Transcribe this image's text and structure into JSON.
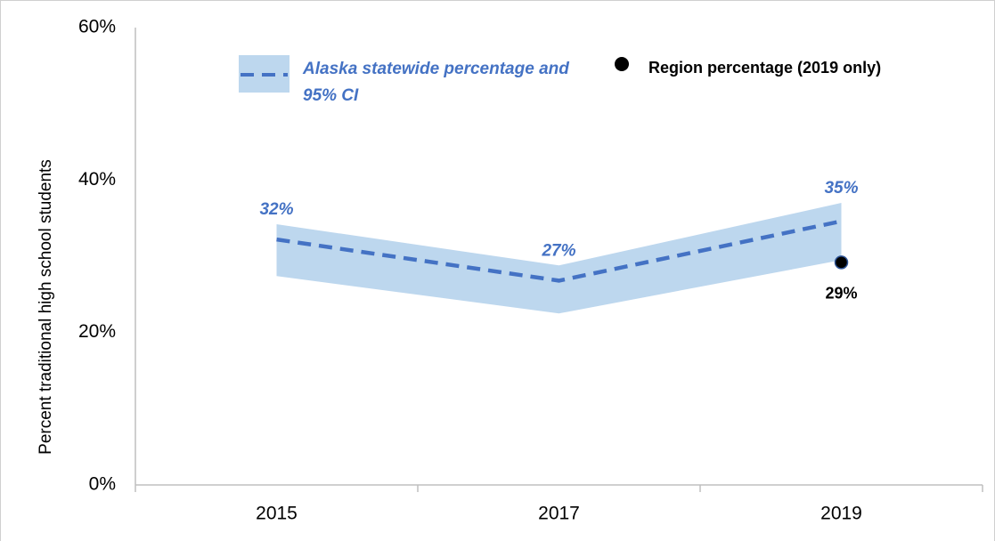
{
  "chart_data": {
    "type": "line",
    "y_axis_label": "Percent traditional high school students",
    "categories": [
      "2015",
      "2017",
      "2019"
    ],
    "ylim": [
      0,
      60
    ],
    "yticks": [
      {
        "value": 0,
        "label": "0%"
      },
      {
        "value": 20,
        "label": "20%"
      },
      {
        "value": 40,
        "label": "40%"
      },
      {
        "value": 60,
        "label": "60%"
      }
    ],
    "series": [
      {
        "name": "Alaska statewide percentage and 95% CI",
        "color": "#4472c4",
        "band_color": "#bdd7ee",
        "values": [
          32.2,
          26.8,
          34.6
        ],
        "value_labels": [
          "32%",
          "27%",
          "35%"
        ],
        "ci_lower": [
          27.4,
          22.5,
          29.5
        ],
        "ci_upper": [
          34.2,
          28.8,
          37.0
        ]
      },
      {
        "name": "Region percentage (2019 only)",
        "color": "#000000",
        "values": [
          null,
          null,
          29.2
        ],
        "value_labels": [
          null,
          null,
          "29%"
        ]
      }
    ]
  }
}
